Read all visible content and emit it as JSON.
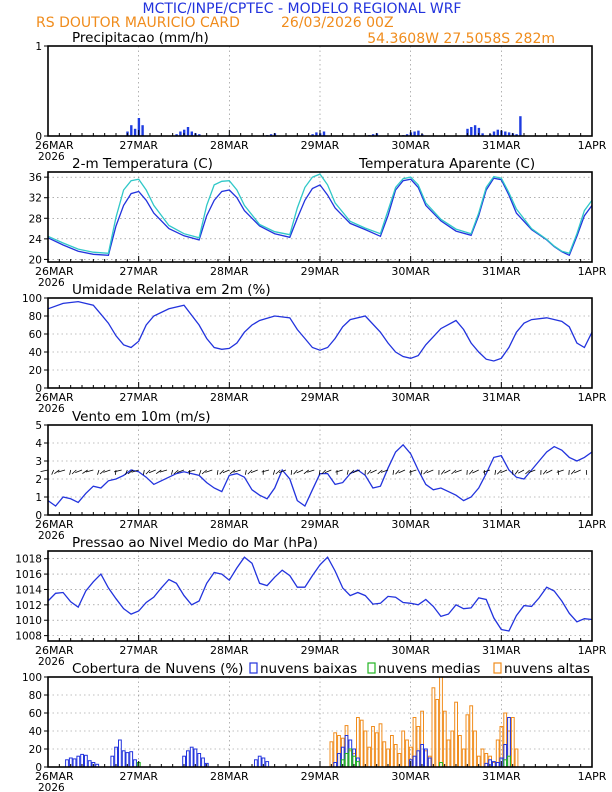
{
  "header": {
    "title": "MCTIC/INPE/CPTEC - MODELO REGIONAL WRF",
    "location": "RS DOUTOR MAURICIO CARD",
    "run": "26/03/2026 00Z",
    "coords": "54.3608W 27.5058S 282m"
  },
  "colors": {
    "title": "#2233dd",
    "orange": "#f08c1c",
    "blue": "#2233dd",
    "cyan": "#30c8c8",
    "green": "#22b522"
  },
  "x_axis": {
    "day_labels": [
      "26MAR",
      "27MAR",
      "28MAR",
      "29MAR",
      "30MAR",
      "31MAR",
      "1APR"
    ],
    "year_label": "2026",
    "hours_total": 144
  },
  "chart_data": [
    {
      "id": "precip",
      "type": "bar",
      "title": "Precipitacao (mm/h)",
      "ylim": [
        0,
        1
      ],
      "yticks": [
        0,
        1
      ],
      "series": [
        {
          "name": "precip",
          "color": "#1d3be0",
          "x": [
            21,
            22,
            23,
            24,
            25,
            34,
            35,
            36,
            37,
            38,
            39,
            40,
            48,
            58,
            59,
            60,
            70,
            71,
            72,
            73,
            85,
            86,
            87,
            94,
            95,
            96,
            97,
            98,
            99,
            111,
            112,
            113,
            114,
            115,
            117,
            118,
            119,
            120,
            121,
            122,
            123,
            124,
            125
          ],
          "values": [
            0.05,
            0.12,
            0.08,
            0.2,
            0.12,
            0.02,
            0.05,
            0.07,
            0.1,
            0.05,
            0.03,
            0.02,
            0.01,
            0.01,
            0.02,
            0.03,
            0.02,
            0.04,
            0.03,
            0.05,
            0.01,
            0.02,
            0.03,
            0.01,
            0.02,
            0.04,
            0.05,
            0.06,
            0.02,
            0.08,
            0.1,
            0.12,
            0.09,
            0.03,
            0.02,
            0.05,
            0.07,
            0.06,
            0.05,
            0.04,
            0.03,
            0.02,
            0.22
          ]
        }
      ]
    },
    {
      "id": "temp",
      "type": "line",
      "title": "2-m Temperatura (C)",
      "legend_text": "Temperatura Aparente (C)",
      "ylim": [
        19.5,
        37
      ],
      "yticks": [
        20,
        24,
        28,
        32,
        36
      ],
      "series": [
        {
          "name": "Temperatura (C)",
          "color": "#2233dd",
          "x": [
            0,
            4,
            8,
            12,
            16,
            18,
            20,
            22,
            24,
            26,
            28,
            32,
            36,
            40,
            42,
            44,
            46,
            48,
            50,
            52,
            56,
            60,
            64,
            66,
            68,
            70,
            72,
            74,
            76,
            80,
            84,
            88,
            90,
            92,
            94,
            96,
            98,
            100,
            104,
            108,
            112,
            114,
            116,
            118,
            120,
            122,
            124,
            128,
            132,
            134,
            136,
            138,
            140,
            142,
            144
          ],
          "values": [
            24.2,
            22.8,
            21.6,
            21,
            20.8,
            26.5,
            30.5,
            32.8,
            33.2,
            31.5,
            29,
            26,
            24.6,
            23.8,
            28.5,
            31.5,
            33.2,
            33.5,
            32,
            29.5,
            26.5,
            25,
            24.3,
            28,
            31.5,
            33.8,
            34.5,
            32.5,
            30,
            27,
            25.8,
            24.5,
            28.5,
            33.5,
            35.3,
            35.6,
            34,
            30.5,
            27.5,
            25.5,
            24.7,
            28.5,
            33.5,
            35.8,
            35.5,
            32.5,
            29,
            25.8,
            23.8,
            22.5,
            21.5,
            20.8,
            24.5,
            28.5,
            30.5
          ]
        },
        {
          "name": "Temperatura Aparente (C)",
          "color": "#30c8c8",
          "x": [
            0,
            4,
            8,
            12,
            16,
            18,
            20,
            22,
            24,
            26,
            28,
            32,
            36,
            40,
            42,
            44,
            46,
            48,
            50,
            52,
            56,
            60,
            64,
            66,
            68,
            70,
            72,
            74,
            76,
            80,
            84,
            88,
            90,
            92,
            94,
            96,
            98,
            100,
            104,
            108,
            112,
            114,
            116,
            118,
            120,
            122,
            124,
            128,
            132,
            134,
            136,
            138,
            140,
            142,
            144
          ],
          "values": [
            24.5,
            23.2,
            22,
            21.4,
            21.2,
            28.2,
            33.5,
            35.3,
            35.6,
            33.5,
            30.5,
            26.6,
            25,
            24.2,
            30.5,
            34.5,
            35.2,
            35.3,
            33.5,
            30.5,
            26.8,
            25.4,
            24.8,
            30,
            34,
            36,
            36.6,
            34.5,
            31,
            27.4,
            26.1,
            25,
            29.5,
            34,
            35.7,
            36,
            34.5,
            31,
            27.8,
            25.9,
            25,
            29,
            34,
            36.1,
            35.8,
            33,
            29.8,
            26,
            23.9,
            22.6,
            21.6,
            21.2,
            25,
            29.5,
            31.5
          ]
        }
      ]
    },
    {
      "id": "rh",
      "type": "line",
      "title": "Umidade Relativa em 2m (%)",
      "ylim": [
        0,
        100
      ],
      "yticks": [
        0,
        20,
        40,
        60,
        80,
        100
      ],
      "series": [
        {
          "name": "Umidade Relativa (%)",
          "color": "#2233dd",
          "x": [
            0,
            4,
            8,
            12,
            14,
            16,
            18,
            20,
            22,
            24,
            26,
            28,
            32,
            36,
            40,
            42,
            44,
            46,
            48,
            50,
            52,
            54,
            56,
            60,
            64,
            66,
            68,
            70,
            72,
            74,
            76,
            78,
            80,
            84,
            88,
            90,
            92,
            94,
            96,
            98,
            100,
            104,
            108,
            110,
            112,
            114,
            116,
            118,
            120,
            122,
            124,
            126,
            128,
            132,
            136,
            138,
            140,
            142,
            144
          ],
          "values": [
            88,
            94,
            96,
            92,
            82,
            72,
            58,
            48,
            45,
            52,
            70,
            80,
            88,
            92,
            70,
            55,
            45,
            43,
            44,
            50,
            62,
            70,
            75,
            80,
            78,
            65,
            55,
            45,
            42,
            45,
            55,
            68,
            76,
            80,
            62,
            50,
            40,
            35,
            33,
            36,
            48,
            66,
            75,
            65,
            50,
            40,
            32,
            30,
            33,
            45,
            62,
            72,
            76,
            78,
            74,
            68,
            50,
            45,
            62
          ]
        }
      ]
    },
    {
      "id": "wind",
      "type": "line",
      "title": "Vento em 10m (m/s)",
      "ylim": [
        0,
        5
      ],
      "yticks": [
        0,
        1,
        2,
        3,
        4,
        5
      ],
      "series": [
        {
          "name": "Vento (m/s)",
          "color": "#2233dd",
          "x": [
            0,
            2,
            4,
            6,
            8,
            10,
            12,
            14,
            16,
            18,
            20,
            22,
            24,
            26,
            28,
            30,
            32,
            34,
            36,
            38,
            40,
            42,
            44,
            46,
            48,
            50,
            52,
            54,
            56,
            58,
            60,
            62,
            64,
            66,
            68,
            70,
            72,
            74,
            76,
            78,
            80,
            82,
            84,
            86,
            88,
            90,
            92,
            94,
            96,
            98,
            100,
            102,
            104,
            106,
            108,
            110,
            112,
            114,
            116,
            118,
            120,
            122,
            124,
            126,
            128,
            130,
            132,
            134,
            136,
            138,
            140,
            142,
            144
          ],
          "values": [
            0.8,
            0.5,
            1,
            0.9,
            0.7,
            1.2,
            1.6,
            1.5,
            1.9,
            2,
            2.2,
            2.5,
            2.4,
            2.1,
            1.7,
            1.9,
            2.1,
            2.3,
            2.4,
            2.3,
            2.2,
            1.8,
            1.5,
            1.3,
            2.2,
            2.3,
            2.1,
            1.4,
            1.1,
            0.9,
            1.5,
            2.5,
            2,
            0.8,
            0.5,
            1.4,
            2.3,
            2.3,
            1.7,
            1.8,
            2.3,
            2.5,
            2.2,
            1.5,
            1.6,
            2.6,
            3.5,
            3.9,
            3.4,
            2.5,
            1.7,
            1.4,
            1.5,
            1.3,
            1.1,
            0.8,
            1,
            1.5,
            2.3,
            3.2,
            3.3,
            2.5,
            2.1,
            2,
            2.5,
            3,
            3.5,
            3.8,
            3.6,
            3.2,
            3,
            3.2,
            3.5
          ]
        }
      ]
    },
    {
      "id": "pressure",
      "type": "line",
      "title": "Pressao ao Nivel Medio do Mar (hPa)",
      "ylim": [
        1007.3,
        1019
      ],
      "yticks": [
        1008,
        1010,
        1012,
        1014,
        1016,
        1018
      ],
      "series": [
        {
          "name": "Pressao (hPa)",
          "color": "#2233dd",
          "x": [
            0,
            2,
            4,
            6,
            8,
            10,
            12,
            14,
            16,
            18,
            20,
            22,
            24,
            26,
            28,
            30,
            32,
            34,
            36,
            38,
            40,
            42,
            44,
            46,
            48,
            50,
            52,
            54,
            56,
            58,
            60,
            62,
            64,
            66,
            68,
            70,
            72,
            74,
            76,
            78,
            80,
            82,
            84,
            86,
            88,
            90,
            92,
            94,
            96,
            98,
            100,
            102,
            104,
            106,
            108,
            110,
            112,
            114,
            116,
            118,
            120,
            122,
            124,
            126,
            128,
            130,
            132,
            134,
            136,
            138,
            140,
            142,
            144
          ],
          "values": [
            1012.5,
            1013.5,
            1013.6,
            1012.4,
            1011.7,
            1013.8,
            1015,
            1016,
            1014.2,
            1012.8,
            1011.5,
            1010.8,
            1011.2,
            1012.3,
            1013,
            1014.2,
            1015.3,
            1014.8,
            1013.2,
            1012,
            1012.5,
            1014.8,
            1016.2,
            1016,
            1015.2,
            1016.8,
            1018.2,
            1017.4,
            1014.8,
            1014.5,
            1015.6,
            1016.5,
            1015.8,
            1014.3,
            1014.3,
            1015.8,
            1017.2,
            1018.2,
            1016.4,
            1014.2,
            1013.2,
            1013.6,
            1013.2,
            1012.1,
            1012.2,
            1013.1,
            1013,
            1012.3,
            1012.2,
            1012,
            1012.7,
            1011.8,
            1010.5,
            1010.8,
            1012,
            1011.5,
            1011.6,
            1012.9,
            1012.7,
            1010.3,
            1008.8,
            1008.6,
            1010.6,
            1011.9,
            1011.8,
            1012.9,
            1014.3,
            1013.8,
            1012.5,
            1010.9,
            1009.8,
            1010.2,
            1010.1
          ]
        }
      ]
    },
    {
      "id": "clouds",
      "type": "bar",
      "title": "Cobertura de Nuvens (%)",
      "ylim": [
        0,
        100
      ],
      "yticks": [
        0,
        20,
        40,
        60,
        80,
        100
      ],
      "legend": [
        "nuvens baixas",
        "nuvens medias",
        "nuvens altas"
      ],
      "series": [
        {
          "name": "nuvens baixas",
          "color": "#2233dd",
          "x": [
            5,
            6,
            7,
            8,
            9,
            10,
            11,
            12,
            13,
            17,
            18,
            19,
            20,
            21,
            22,
            23,
            36,
            37,
            38,
            39,
            40,
            41,
            42,
            55,
            56,
            57,
            58,
            76,
            77,
            78,
            79,
            80,
            81,
            82,
            96,
            97,
            98,
            99,
            100,
            101,
            116,
            117,
            118,
            119,
            120,
            121,
            122
          ],
          "values": [
            8,
            10,
            9,
            12,
            14,
            13,
            7,
            5,
            3,
            12,
            22,
            30,
            18,
            16,
            17,
            8,
            12,
            18,
            22,
            20,
            15,
            10,
            4,
            8,
            12,
            10,
            6,
            5,
            15,
            22,
            35,
            30,
            20,
            10,
            8,
            12,
            18,
            25,
            20,
            10,
            4,
            8,
            6,
            5,
            10,
            25,
            55
          ]
        },
        {
          "name": "nuvens medias",
          "color": "#22b522",
          "x": [
            24,
            78,
            79,
            80,
            81,
            82,
            104,
            121,
            122
          ],
          "values": [
            5,
            8,
            15,
            20,
            12,
            6,
            5,
            8,
            12
          ]
        },
        {
          "name": "nuvens altas",
          "color": "#f08c1c",
          "x": [
            75,
            76,
            77,
            78,
            79,
            80,
            81,
            82,
            83,
            84,
            85,
            86,
            87,
            88,
            89,
            90,
            91,
            92,
            93,
            94,
            95,
            96,
            97,
            98,
            99,
            100,
            101,
            102,
            103,
            104,
            105,
            106,
            107,
            108,
            109,
            110,
            111,
            112,
            113,
            114,
            115,
            116,
            117,
            118,
            119,
            120,
            121,
            122,
            123,
            124
          ],
          "values": [
            28,
            38,
            35,
            32,
            46,
            18,
            15,
            55,
            52,
            40,
            22,
            45,
            38,
            48,
            28,
            20,
            35,
            25,
            15,
            40,
            30,
            22,
            55,
            45,
            62,
            18,
            12,
            88,
            75,
            100,
            62,
            30,
            40,
            72,
            35,
            20,
            58,
            68,
            40,
            12,
            20,
            15,
            12,
            5,
            30,
            45,
            60,
            40,
            55,
            20
          ]
        }
      ]
    }
  ]
}
